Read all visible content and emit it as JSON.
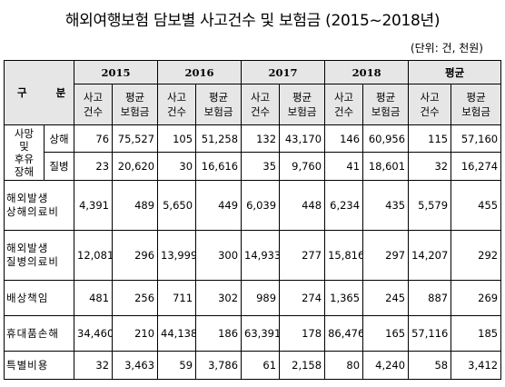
{
  "title": "해외여행보험 담보별 사고건수 및 보험금 (2015~2018년)",
  "unit": "(단위: 건, 천원)",
  "header": {
    "category": "구 분",
    "years": [
      "2015",
      "2016",
      "2017",
      "2018",
      "평균"
    ],
    "col_count": "사고\n건수",
    "col_avg": "평균\n보험금"
  },
  "rows": [
    {
      "group": "사망\n및\n후유\n장해",
      "label": "상해",
      "values": [
        "76",
        "75,527",
        "105",
        "51,258",
        "132",
        "43,170",
        "146",
        "60,956",
        "115",
        "57,160"
      ]
    },
    {
      "label": "질병",
      "values": [
        "23",
        "20,620",
        "30",
        "16,616",
        "35",
        "9,760",
        "41",
        "18,601",
        "32",
        "16,274"
      ]
    },
    {
      "label": "해외발생\n상해의료비",
      "values": [
        "4,391",
        "489",
        "5,650",
        "449",
        "6,039",
        "448",
        "6,234",
        "435",
        "5,579",
        "455"
      ]
    },
    {
      "label": "해외발생\n질병의료비",
      "values": [
        "12,081",
        "296",
        "13,999",
        "300",
        "14,933",
        "277",
        "15,816",
        "297",
        "14,207",
        "292"
      ]
    },
    {
      "label": "배상책임",
      "values": [
        "481",
        "256",
        "711",
        "302",
        "989",
        "274",
        "1,365",
        "245",
        "887",
        "269"
      ]
    },
    {
      "label": "휴대품손해",
      "values": [
        "34,460",
        "210",
        "44,138",
        "186",
        "63,391",
        "178",
        "86,476",
        "165",
        "57,116",
        "185"
      ]
    },
    {
      "label": "특별비용",
      "values": [
        "32",
        "3,463",
        "59",
        "3,786",
        "61",
        "2,158",
        "80",
        "4,240",
        "58",
        "3,412"
      ]
    }
  ]
}
